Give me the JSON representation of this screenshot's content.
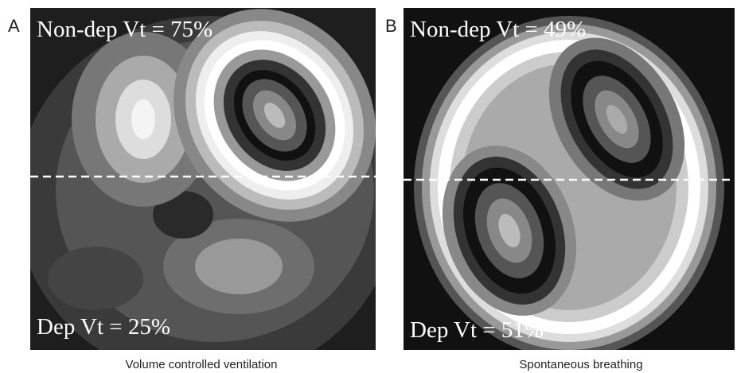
{
  "panels": [
    {
      "label": "A",
      "top_text": "Non-dep Vt = 75%",
      "bottom_text": "Dep Vt = 25%",
      "caption": "Volume controlled ventilation"
    },
    {
      "label": "B",
      "top_text": "Non-dep Vt = 49%",
      "bottom_text": "Dep Vt = 51%",
      "caption": "Spontaneous breathing"
    }
  ]
}
